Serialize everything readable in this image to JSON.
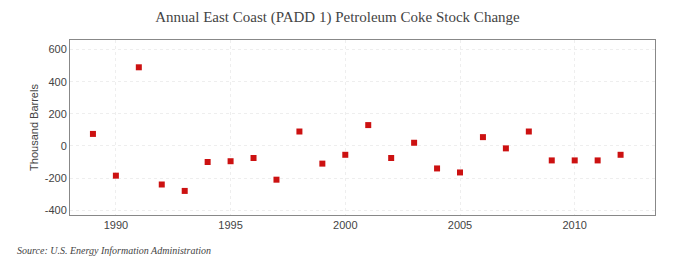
{
  "chart_data": {
    "type": "scatter",
    "title": "Annual East Coast (PADD 1) Petroleum Coke Stock Change",
    "ylabel": "Thousand Barrels",
    "annotation": "Source: U.S. Energy Information Administration",
    "x": [
      1989,
      1990,
      1991,
      1992,
      1993,
      1994,
      1995,
      1996,
      1997,
      1998,
      1999,
      2000,
      2001,
      2002,
      2003,
      2004,
      2005,
      2006,
      2007,
      2008,
      2009,
      2010,
      2011,
      2012
    ],
    "values": [
      75,
      -185,
      490,
      -240,
      -280,
      -100,
      -95,
      -75,
      -210,
      90,
      -110,
      -55,
      130,
      -75,
      20,
      -140,
      -165,
      55,
      -15,
      90,
      -90,
      -90,
      -90,
      -55
    ],
    "color": "#cc1111",
    "marker": "square",
    "xlim": [
      1988.0,
      2013.5
    ],
    "ylim": [
      -430,
      660
    ],
    "xticks": [
      1990,
      1995,
      2000,
      2005,
      2010
    ],
    "yticks": [
      -400,
      -200,
      0,
      200,
      400,
      600
    ],
    "grid": true
  }
}
